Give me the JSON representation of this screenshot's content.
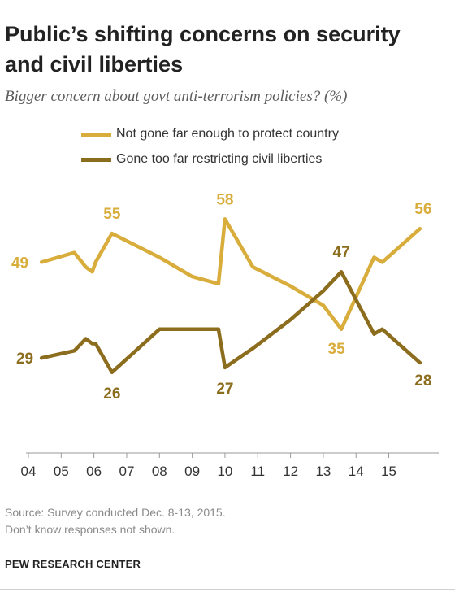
{
  "chart_data": {
    "type": "line",
    "title": "Public’s shifting concerns on security and civil liberties",
    "subtitle": "Bigger concern about govt anti-terrorism policies? (%)",
    "x_tick_labels": [
      "04",
      "05",
      "06",
      "07",
      "08",
      "09",
      "10",
      "11",
      "12",
      "13",
      "14",
      "15"
    ],
    "x_ticks": [
      2004,
      2005,
      2006,
      2007,
      2008,
      2009,
      2010,
      2011,
      2012,
      2013,
      2014,
      2015
    ],
    "xlim": [
      2004,
      2016.4
    ],
    "ylim": [
      10,
      63
    ],
    "grid": false,
    "legend_position": "top",
    "series": [
      {
        "name": "Not gone far enough to protect country",
        "color": "#d9ad3c",
        "points": [
          [
            2004.4,
            49
          ],
          [
            2005.4,
            51
          ],
          [
            2005.75,
            48
          ],
          [
            2005.95,
            47
          ],
          [
            2006.05,
            49
          ],
          [
            2006.55,
            55
          ],
          [
            2008.0,
            50
          ],
          [
            2009.0,
            46
          ],
          [
            2009.8,
            44.5
          ],
          [
            2010.0,
            58
          ],
          [
            2010.85,
            48
          ],
          [
            2012.0,
            44
          ],
          [
            2013.0,
            40
          ],
          [
            2013.55,
            35
          ],
          [
            2014.55,
            50
          ],
          [
            2014.8,
            49
          ],
          [
            2015.95,
            56
          ]
        ],
        "labels": [
          {
            "value": "49",
            "at": 0
          },
          {
            "value": "55",
            "at": 5
          },
          {
            "value": "58",
            "at": 9
          },
          {
            "value": "35",
            "at": 13
          },
          {
            "value": "56",
            "at": 16
          }
        ]
      },
      {
        "name": "Gone too far restricting civil liberties",
        "color": "#8c6d1e",
        "points": [
          [
            2004.4,
            29
          ],
          [
            2005.4,
            30.5
          ],
          [
            2005.75,
            33
          ],
          [
            2005.95,
            32
          ],
          [
            2006.05,
            32
          ],
          [
            2006.55,
            26
          ],
          [
            2008.0,
            35
          ],
          [
            2009.0,
            35
          ],
          [
            2009.8,
            35
          ],
          [
            2010.0,
            27
          ],
          [
            2010.85,
            31
          ],
          [
            2012.0,
            37
          ],
          [
            2013.0,
            43
          ],
          [
            2013.55,
            47
          ],
          [
            2014.55,
            34
          ],
          [
            2014.8,
            35
          ],
          [
            2015.95,
            28
          ]
        ],
        "labels": [
          {
            "value": "29",
            "at": 0
          },
          {
            "value": "26",
            "at": 5
          },
          {
            "value": "27",
            "at": 9
          },
          {
            "value": "47",
            "at": 13
          },
          {
            "value": "28",
            "at": 16
          }
        ]
      }
    ]
  },
  "source_note": "Source: Survey conducted Dec. 8-13, 2015.",
  "dk_note": "Don’t know responses not shown.",
  "brand": "PEW RESEARCH CENTER"
}
